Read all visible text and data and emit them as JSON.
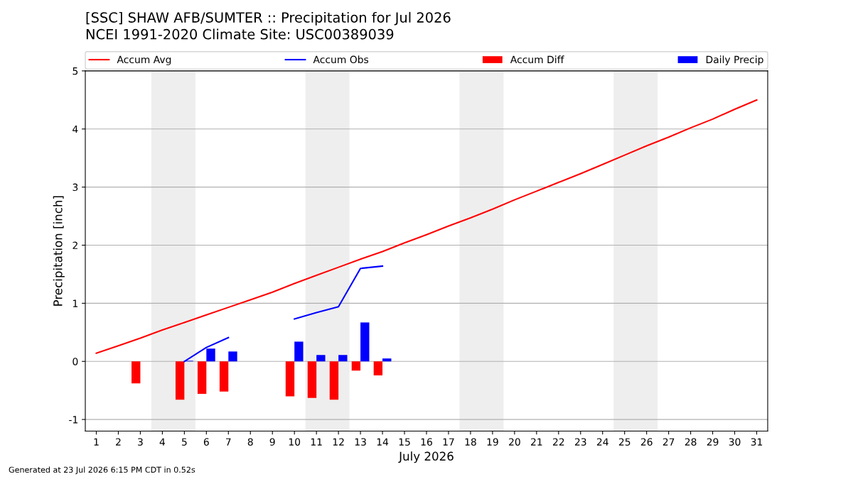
{
  "chart_data": {
    "type": "line",
    "title": "[SSC] SHAW AFB/SUMTER :: Precipitation for Jul 2026",
    "subtitle": "NCEI 1991-2020 Climate Site: USC00389039",
    "xlabel": "July 2026",
    "ylabel": "Precipitation [inch]",
    "x": [
      1,
      2,
      3,
      4,
      5,
      6,
      7,
      8,
      9,
      10,
      11,
      12,
      13,
      14,
      15,
      16,
      17,
      18,
      19,
      20,
      21,
      22,
      23,
      24,
      25,
      26,
      27,
      28,
      29,
      30,
      31
    ],
    "series": [
      {
        "name": "Accum Avg",
        "color": "#ff0000",
        "values": [
          0.14,
          0.27,
          0.4,
          0.54,
          0.67,
          0.8,
          0.93,
          1.06,
          1.19,
          1.34,
          1.48,
          1.62,
          1.76,
          1.89,
          2.04,
          2.18,
          2.33,
          2.47,
          2.62,
          2.78,
          2.93,
          3.08,
          3.23,
          3.39,
          3.55,
          3.71,
          3.86,
          4.02,
          4.17,
          4.34,
          4.5
        ]
      },
      {
        "name": "Accum Obs",
        "color": "#0000ff",
        "values": [
          null,
          null,
          null,
          null,
          0.0,
          0.24,
          0.41,
          null,
          null,
          0.73,
          0.84,
          0.94,
          1.6,
          1.64,
          null,
          null,
          null,
          null,
          null,
          null,
          null,
          null,
          null,
          null,
          null,
          null,
          null,
          null,
          null,
          null,
          null
        ]
      },
      {
        "name": "Accum Diff",
        "type": "bar",
        "color": "#ff0000",
        "values": [
          null,
          null,
          -0.38,
          null,
          -0.66,
          -0.56,
          -0.52,
          null,
          null,
          -0.6,
          -0.63,
          -0.66,
          -0.16,
          -0.24,
          null,
          null,
          null,
          null,
          null,
          null,
          null,
          null,
          null,
          null,
          null,
          null,
          null,
          null,
          null,
          null,
          null
        ]
      },
      {
        "name": "Daily Precip",
        "type": "bar",
        "color": "#0000ff",
        "values": [
          null,
          null,
          null,
          null,
          0.01,
          0.22,
          0.17,
          null,
          null,
          0.34,
          0.11,
          0.11,
          0.67,
          0.05,
          null,
          null,
          null,
          null,
          null,
          null,
          null,
          null,
          null,
          null,
          null,
          null,
          null,
          null,
          null,
          null,
          null
        ]
      }
    ],
    "bands": [
      {
        "axis": "x",
        "from": 3.5,
        "to": 5.5,
        "color": "#eeeeee"
      },
      {
        "axis": "x",
        "from": 10.5,
        "to": 12.5,
        "color": "#eeeeee"
      },
      {
        "axis": "x",
        "from": 17.5,
        "to": 19.5,
        "color": "#eeeeee"
      },
      {
        "axis": "x",
        "from": 24.5,
        "to": 26.5,
        "color": "#eeeeee"
      }
    ],
    "xlim": [
      0.5,
      31.5
    ],
    "xticks": [
      1,
      2,
      3,
      4,
      5,
      6,
      7,
      8,
      9,
      10,
      11,
      12,
      13,
      14,
      15,
      16,
      17,
      18,
      19,
      20,
      21,
      22,
      23,
      24,
      25,
      26,
      27,
      28,
      29,
      30,
      31
    ],
    "ylim": [
      -1.2,
      5
    ],
    "yticks": [
      -1,
      0,
      1,
      2,
      3,
      4,
      5
    ],
    "grid": "y",
    "legend": "top",
    "annotations": [
      "Generated at 23 Jul 2026 6:15 PM CDT in 0.52s"
    ]
  }
}
